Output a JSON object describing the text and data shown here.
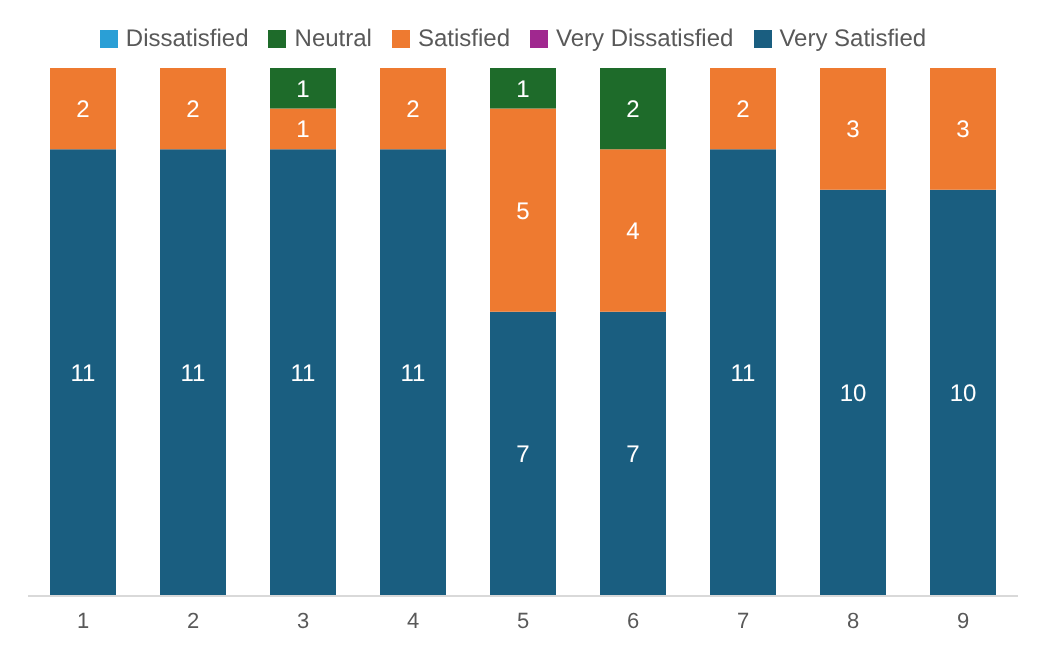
{
  "chart_data": {
    "type": "bar",
    "stacked": true,
    "categories": [
      "1",
      "2",
      "3",
      "4",
      "5",
      "6",
      "7",
      "8",
      "9"
    ],
    "series": [
      {
        "name": "Very Satisfied",
        "color": "#1a5e80",
        "values": [
          11,
          11,
          11,
          11,
          7,
          7,
          11,
          10,
          10
        ]
      },
      {
        "name": "Satisfied",
        "color": "#ee7a30",
        "values": [
          2,
          2,
          1,
          2,
          5,
          4,
          2,
          3,
          3
        ]
      },
      {
        "name": "Neutral",
        "color": "#1e6b2a",
        "values": [
          null,
          null,
          1,
          null,
          1,
          2,
          null,
          null,
          null
        ]
      },
      {
        "name": "Dissatisfied",
        "color": "#2a9fd6",
        "values": [
          null,
          null,
          null,
          null,
          null,
          null,
          null,
          null,
          null
        ]
      },
      {
        "name": "Very Dissatisfied",
        "color": "#a0288f",
        "values": [
          null,
          null,
          null,
          null,
          null,
          null,
          null,
          null,
          null
        ]
      }
    ],
    "data_labels": true,
    "legend": "top",
    "grid": false
  }
}
